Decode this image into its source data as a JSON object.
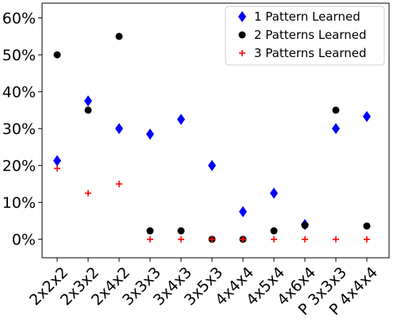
{
  "chart_data": {
    "type": "scatter",
    "title": "",
    "xlabel": "",
    "ylabel": "",
    "categories": [
      "2x2x2",
      "2x3x2",
      "2x4x2",
      "3x3x3",
      "3x4x3",
      "3x5x3",
      "4x4x4",
      "4x5x4",
      "4x6x4",
      "P 3x3x3",
      "P 4x4x4"
    ],
    "y_ticks": [
      "0%",
      "10%",
      "20%",
      "30%",
      "40%",
      "50%",
      "60%"
    ],
    "y_tick_values": [
      0,
      10,
      20,
      30,
      40,
      50,
      60
    ],
    "ylim": [
      -5,
      64
    ],
    "grid": false,
    "legend_position": "top-right",
    "series": [
      {
        "name": "1 Pattern Learned",
        "marker": "diamond",
        "color": "#0000ff",
        "values": [
          21.3,
          37.5,
          30.0,
          28.5,
          32.5,
          20.0,
          7.5,
          12.5,
          4.0,
          30.0,
          33.3
        ]
      },
      {
        "name": "2 Patterns Learned",
        "marker": "circle",
        "color": "#000000",
        "values": [
          50.0,
          35.0,
          55.0,
          2.3,
          2.3,
          0.0,
          0.0,
          2.3,
          3.8,
          35.0,
          3.6
        ]
      },
      {
        "name": "3 Patterns Learned",
        "marker": "plus",
        "color": "#ff0000",
        "values": [
          19.2,
          12.5,
          15.0,
          0.0,
          0.0,
          0.0,
          0.0,
          0.0,
          0.0,
          0.0,
          0.0
        ]
      }
    ]
  }
}
